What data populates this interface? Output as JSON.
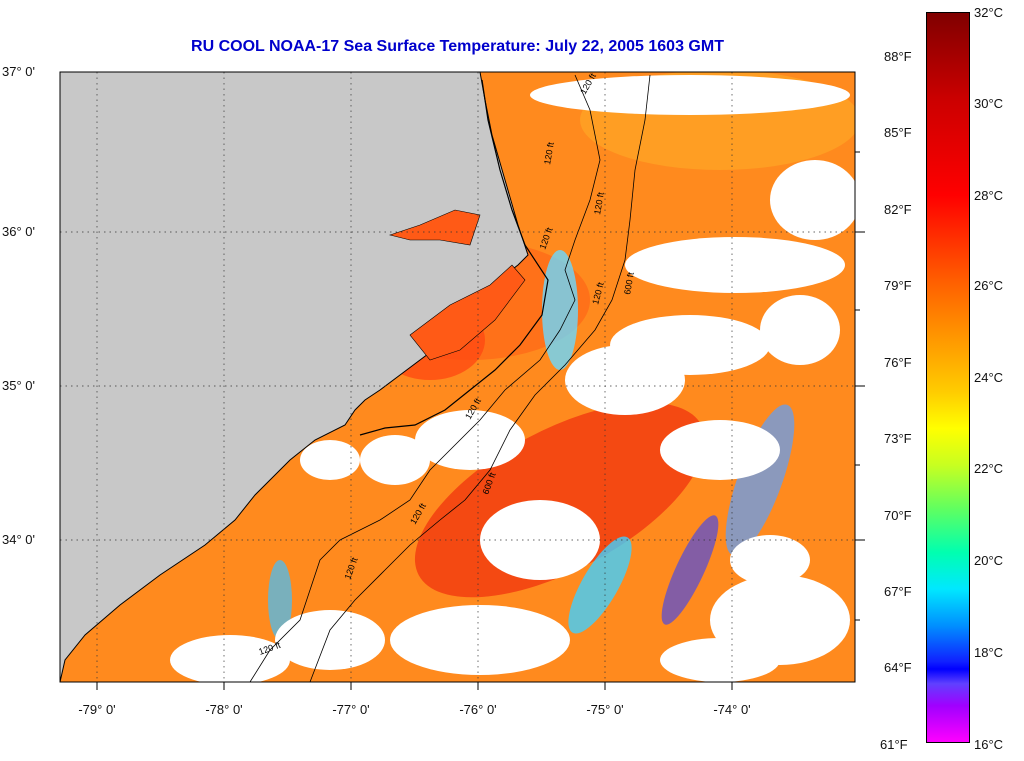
{
  "title": "RU COOL  NOAA-17  Sea Surface Temperature:  July 22, 2005 1603 GMT",
  "map": {
    "lat_labels": [
      "37° 0'",
      "36° 0'",
      "35° 0'",
      "34° 0'"
    ],
    "lon_labels": [
      "-79° 0'",
      "-78° 0'",
      "-77° 0'",
      "-76° 0'",
      "-75° 0'",
      "-74° 0'"
    ],
    "contour_labels": [
      "120 ft",
      "120 ft",
      "120 ft",
      "120 ft",
      "600 ft",
      "120 ft",
      "600 ft",
      "120 ft",
      "120 ft",
      "120 ft",
      "120 ft"
    ],
    "colors": {
      "land": "#c8c8c8",
      "water_warm": "#ff8c1a",
      "cloud": "#ffffff",
      "title": "#0000cc"
    }
  },
  "colorbar": {
    "fahrenheit": [
      "88°F",
      "85°F",
      "82°F",
      "79°F",
      "76°F",
      "73°F",
      "70°F",
      "67°F",
      "64°F",
      "61°F"
    ],
    "celsius": [
      "32°C",
      "30°C",
      "28°C",
      "26°C",
      "24°C",
      "22°C",
      "20°C",
      "18°C",
      "16°C"
    ]
  }
}
